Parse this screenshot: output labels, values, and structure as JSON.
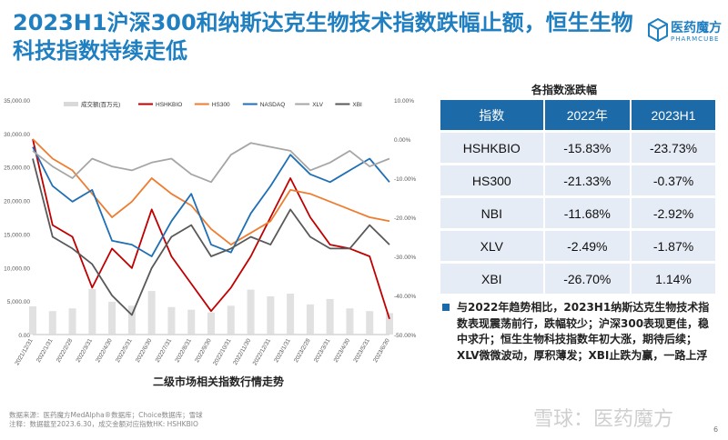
{
  "title": "2023H1沪深300和纳斯达克生物技术指数跌幅止额，恒生生物科技指数持续走低",
  "logo": {
    "name": "医药魔方",
    "sub": "PHARMCUBE"
  },
  "chart_data": {
    "type": "line",
    "x": [
      "2021/12/31",
      "2022/1/31",
      "2022/2/28",
      "2022/3/31",
      "2022/4/30",
      "2022/5/31",
      "2022/6/30",
      "2022/7/31",
      "2022/8/31",
      "2022/9/30",
      "2022/10/31",
      "2022/11/30",
      "2022/12/31",
      "2023/1/31",
      "2023/2/28",
      "2023/3/31",
      "2023/4/30",
      "2023/5/31",
      "2023/6/30"
    ],
    "series": [
      {
        "name": "成交额(百万元)",
        "axis": "left",
        "type": "bar",
        "color": "#d9d9d9",
        "values": [
          4200,
          3500,
          3900,
          6800,
          4900,
          4300,
          6500,
          4100,
          3700,
          3300,
          4300,
          6700,
          5700,
          6100,
          4500,
          5300,
          3900,
          3500,
          3200
        ]
      },
      {
        "name": "HSHKBIO",
        "axis": "right",
        "color": "#c00000",
        "values": [
          0,
          -22,
          -25,
          -38,
          -28,
          -33,
          -18,
          -30,
          -37,
          -44,
          -38,
          -30,
          -20,
          -10,
          -20,
          -27,
          -28,
          -30,
          -46
        ]
      },
      {
        "name": "HS300",
        "axis": "right",
        "color": "#ed7d31",
        "values": [
          0,
          -5,
          -8,
          -14,
          -20,
          -16,
          -10,
          -14,
          -17,
          -23,
          -27,
          -24,
          -21,
          -13,
          -14,
          -16,
          -18,
          -20,
          -21
        ]
      },
      {
        "name": "NASDAQ",
        "axis": "right",
        "color": "#1f6fb4",
        "values": [
          -2,
          -12,
          -16,
          -13,
          -26,
          -27,
          -30,
          -21,
          -14,
          -27,
          -29,
          -19,
          -12,
          -4,
          -9,
          -11,
          -8,
          -5,
          -11
        ]
      },
      {
        "name": "XLV",
        "axis": "right",
        "color": "#a6a6a6",
        "values": [
          -3,
          -7,
          -10,
          -5,
          -7,
          -8,
          -6,
          -5,
          -9,
          -11,
          -4,
          -1,
          -2,
          -3,
          -8,
          -6,
          -3,
          -7,
          -5
        ]
      },
      {
        "name": "XBI",
        "axis": "right",
        "color": "#595959",
        "values": [
          -5,
          -25,
          -28,
          -32,
          -40,
          -45,
          -33,
          -25,
          -22,
          -30,
          -28,
          -25,
          -27,
          -18,
          -25,
          -28,
          -28,
          -22,
          -27
        ]
      }
    ],
    "yleft": {
      "ticks": [
        "35,000.00",
        "30,000.00",
        "25,000.00",
        "20,000.00",
        "15,000.00",
        "10,000.00",
        "5,000.00",
        "0.00"
      ],
      "lim": [
        0,
        35000
      ]
    },
    "yright": {
      "ticks": [
        "10.00%",
        "0.00%",
        "-10.00%",
        "-20.00%",
        "-30.00%",
        "-40.00%",
        "-50.00%"
      ],
      "lim": [
        -50,
        10
      ]
    },
    "legend_position": "top",
    "grid": false
  },
  "chart_caption": "二级市场相关指数行情走势",
  "table": {
    "title": "各指数涨跌幅",
    "headers": [
      "指数",
      "2022年",
      "2023H1"
    ],
    "rows": [
      [
        "HSHKBIO",
        "-15.83%",
        "-23.73%"
      ],
      [
        "HS300",
        "-21.33%",
        "-0.37%"
      ],
      [
        "NBI",
        "-11.68%",
        "-2.92%"
      ],
      [
        "XLV",
        "-2.49%",
        "-1.87%"
      ],
      [
        "XBI",
        "-26.70%",
        "1.14%"
      ]
    ]
  },
  "note": "与2022年趋势相比，2023H1纳斯达克生物技术指数表现震荡前行，跌幅较少；沪深300表现更佳，稳中求升；恒生生物科技指数年初大涨，期待后续；XLV微微波动，厚积薄发；XBI止跌为赢，一路上浮",
  "source": {
    "line1": "数据来源：医药魔方MedAlpha®数据库；Choice数据库；雪球",
    "line2": "注释：数据截至2023.6.30，成交金额对应指数HK: HSHKBIO"
  },
  "watermark": "雪球：医药魔方",
  "page_number": "6",
  "colors": {
    "brand": "#1f7fc1",
    "table_header": "#1d6aa8",
    "table_row": "#e6ecf5"
  }
}
